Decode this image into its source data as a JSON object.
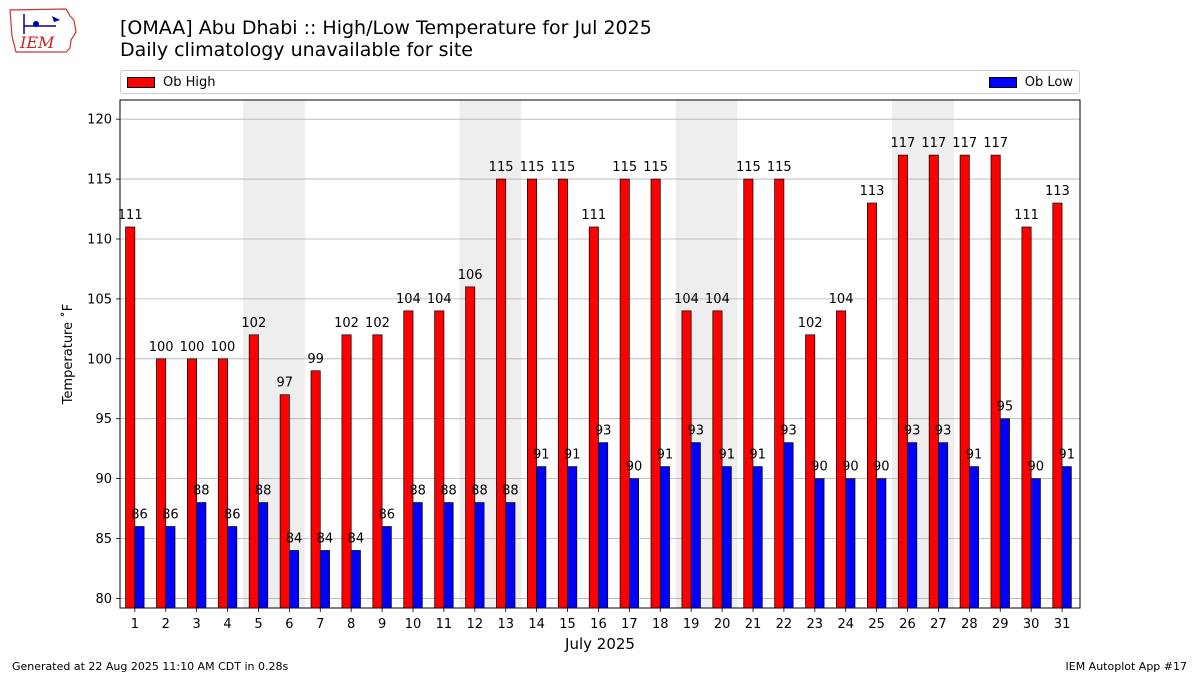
{
  "header": {
    "logo_text": "IEM",
    "title_line1": "[OMAA] Abu Dhabi :: High/Low Temperature for Jul 2025",
    "title_line2": "Daily climatology unavailable for site"
  },
  "legend": {
    "high_label": "Ob High",
    "low_label": "Ob Low"
  },
  "footer": {
    "generated": "Generated at 22 Aug 2025 11:10 AM CDT in 0.28s",
    "app": "IEM Autoplot App #17"
  },
  "colors": {
    "high": "#ff0000",
    "low": "#0000ff",
    "weekend_shade": "#eeeeee",
    "grid": "#b0b0b0"
  },
  "chart_data": {
    "type": "bar",
    "title": "[OMAA] Abu Dhabi :: High/Low Temperature for Jul 2025",
    "subtitle": "Daily climatology unavailable for site",
    "xlabel": "July 2025",
    "ylabel": "Temperature ˚F",
    "categories": [
      "1",
      "2",
      "3",
      "4",
      "5",
      "6",
      "7",
      "8",
      "9",
      "10",
      "11",
      "12",
      "13",
      "14",
      "15",
      "16",
      "17",
      "18",
      "19",
      "20",
      "21",
      "22",
      "23",
      "24",
      "25",
      "26",
      "27",
      "28",
      "29",
      "30",
      "31"
    ],
    "series": [
      {
        "name": "Ob High",
        "values": [
          111,
          100,
          100,
          100,
          102,
          97,
          99,
          102,
          102,
          104,
          104,
          106,
          115,
          115,
          115,
          111,
          115,
          115,
          104,
          104,
          115,
          115,
          102,
          104,
          113,
          117,
          117,
          117,
          117,
          111,
          113
        ]
      },
      {
        "name": "Ob Low",
        "values": [
          86,
          86,
          88,
          86,
          88,
          84,
          84,
          84,
          86,
          88,
          88,
          88,
          88,
          91,
          91,
          93,
          90,
          91,
          93,
          91,
          91,
          93,
          90,
          90,
          90,
          93,
          93,
          91,
          95,
          90,
          91
        ]
      }
    ],
    "shaded_days": [
      [
        5,
        6
      ],
      [
        12,
        13
      ],
      [
        19,
        20
      ],
      [
        26,
        27
      ]
    ],
    "ylim": [
      79.2,
      121.6
    ],
    "yticks": [
      80,
      85,
      90,
      95,
      100,
      105,
      110,
      115,
      120
    ],
    "grid": "horizontal",
    "legend_position": "top"
  }
}
